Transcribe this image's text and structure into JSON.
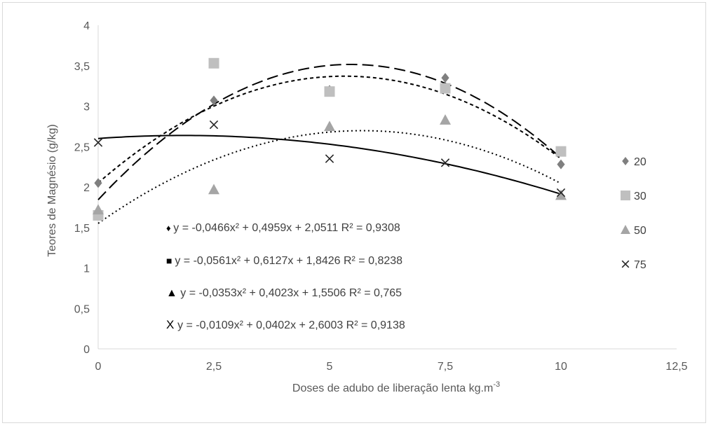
{
  "chart_data": {
    "type": "scatter",
    "xlabel_main": "Doses de adubo de liberação lenta kg.m",
    "xlabel_sup": "-3",
    "ylabel": "Teores de Magnésio  (g/kg)",
    "xlim": [
      0,
      12.5
    ],
    "ylim": [
      0,
      4
    ],
    "x_ticks": [
      "0",
      "2,5",
      "5",
      "7,5",
      "10",
      "12,5"
    ],
    "y_ticks": [
      "0",
      "0,5",
      "1",
      "1,5",
      "2",
      "2,5",
      "3",
      "3,5",
      "4"
    ],
    "grid": false,
    "legend_position": "right",
    "x": [
      0,
      2.5,
      5,
      7.5,
      10
    ],
    "series": [
      {
        "name": "20",
        "marker": "diamond",
        "color": "#7f7f7f",
        "values": [
          2.05,
          3.07,
          3.2,
          3.35,
          2.28
        ],
        "fit": {
          "a": -0.0466,
          "b": 0.4959,
          "c": 2.0511,
          "line_style": "short-dash"
        },
        "equation_text": "y = -0,0466x² + 0,4959x + 2,0511 R² = 0,9308",
        "equation_marker": "♦"
      },
      {
        "name": "30",
        "marker": "square",
        "color": "#bfbfbf",
        "values": [
          1.65,
          3.53,
          3.18,
          3.22,
          2.44
        ],
        "fit": {
          "a": -0.0561,
          "b": 0.6127,
          "c": 1.8426,
          "line_style": "long-dash"
        },
        "equation_text": "y = -0,0561x² + 0,6127x + 1,8426 R² = 0,8238",
        "equation_marker": "■"
      },
      {
        "name": "50",
        "marker": "triangle",
        "color": "#a5a5a5",
        "values": [
          1.72,
          1.97,
          2.75,
          2.83,
          1.9
        ],
        "fit": {
          "a": -0.0353,
          "b": 0.4023,
          "c": 1.5506,
          "line_style": "dotted"
        },
        "equation_text": "y = -0,0353x² + 0,4023x + 1,5506 R² = 0,765",
        "equation_marker": "▲"
      },
      {
        "name": "75",
        "marker": "x",
        "color": "#262626",
        "values": [
          2.55,
          2.77,
          2.35,
          2.3,
          1.93
        ],
        "fit": {
          "a": -0.0109,
          "b": 0.0402,
          "c": 2.6003,
          "line_style": "solid"
        },
        "equation_text": "y = -0,0109x² + 0,0402x + 2,6003 R² = 0,9138",
        "equation_marker": "X"
      }
    ]
  }
}
